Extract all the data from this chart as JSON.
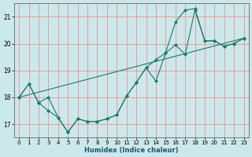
{
  "xlabel": "Humidex (Indice chaleur)",
  "background_color": "#cce8ea",
  "line_color": "#1a7a6e",
  "grid_color": "#f08080",
  "xlim": [
    -0.5,
    23.5
  ],
  "ylim": [
    16.5,
    21.5
  ],
  "yticks": [
    17,
    18,
    19,
    20,
    21
  ],
  "xticks": [
    0,
    1,
    2,
    3,
    4,
    5,
    6,
    7,
    8,
    9,
    10,
    11,
    12,
    13,
    14,
    15,
    16,
    17,
    18,
    19,
    20,
    21,
    22,
    23
  ],
  "line1_x": [
    0,
    1,
    2,
    3,
    4,
    5,
    6,
    7,
    8,
    9,
    10,
    11,
    12,
    13,
    14,
    15,
    16,
    17,
    18,
    19,
    20,
    21,
    22,
    23
  ],
  "line1_y": [
    18.0,
    18.5,
    17.8,
    17.5,
    17.25,
    16.7,
    17.2,
    17.1,
    17.1,
    17.2,
    17.35,
    18.05,
    18.55,
    19.1,
    18.6,
    19.65,
    19.95,
    19.6,
    21.25,
    20.1,
    20.1,
    19.9,
    20.0,
    20.2
  ],
  "line2_x": [
    0,
    23
  ],
  "line2_y": [
    18.0,
    20.2
  ],
  "line3_x": [
    0,
    1,
    2,
    3,
    4,
    5,
    6,
    7,
    8,
    9,
    10,
    11,
    12,
    13,
    14,
    15,
    16,
    17,
    18,
    19,
    20,
    21,
    22,
    23
  ],
  "line3_y": [
    18.0,
    18.5,
    17.8,
    18.0,
    17.25,
    16.7,
    17.2,
    17.1,
    17.1,
    17.2,
    17.35,
    18.05,
    18.55,
    19.1,
    19.4,
    19.65,
    20.8,
    21.25,
    21.3,
    20.1,
    20.1,
    19.9,
    20.0,
    20.2
  ]
}
